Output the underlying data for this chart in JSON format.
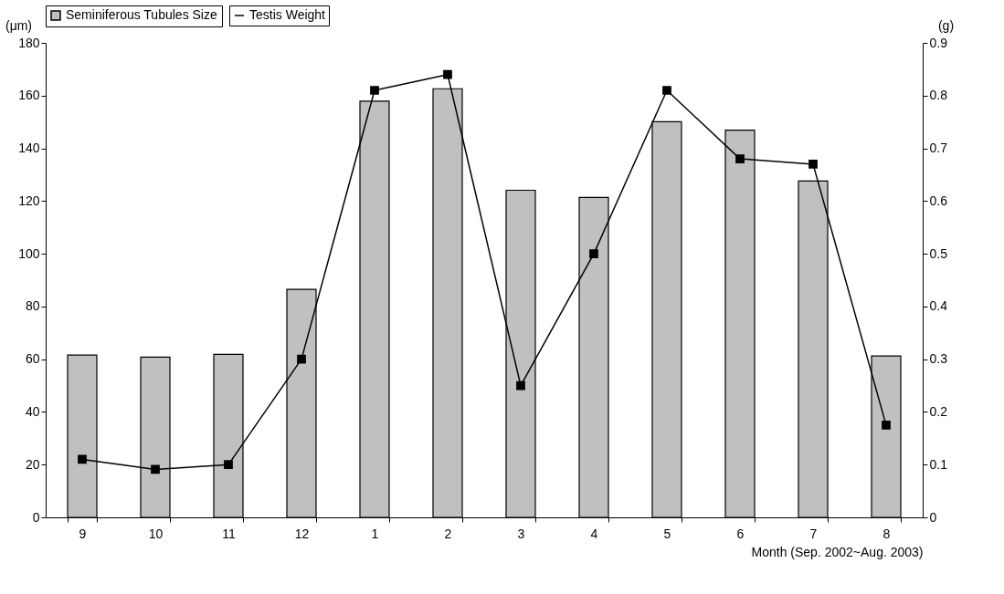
{
  "chart_data": {
    "type": "bar",
    "categories": [
      "9",
      "10",
      "11",
      "12",
      "1",
      "2",
      "3",
      "4",
      "5",
      "6",
      "7",
      "8"
    ],
    "series": [
      {
        "name": "Seminiferous Tubules Size",
        "type": "bar",
        "color": "#c0c0c0",
        "values": [
          61.6,
          60.8,
          61.8,
          86.5,
          157.9,
          162.6,
          124.1,
          121.4,
          150.1,
          146.9,
          127.6,
          61.2
        ]
      },
      {
        "name": "Testis Weight",
        "type": "line",
        "axis": "y2",
        "color": "#000000",
        "values": [
          0.11,
          0.091,
          0.1,
          0.3,
          0.81,
          0.84,
          0.25,
          0.5,
          0.81,
          0.68,
          0.67,
          0.175
        ]
      }
    ],
    "ylabel": "(μm)",
    "y2label": "(g)",
    "xlabel": "Month (Sep. 2002~Aug. 2003)",
    "ylim": [
      0,
      180
    ],
    "yticks": [
      0,
      20,
      40,
      60,
      80,
      100,
      120,
      140,
      160,
      180
    ],
    "y2lim": [
      0,
      0.9
    ],
    "y2ticks": [
      0,
      0.1,
      0.2,
      0.3,
      0.4,
      0.5,
      0.6,
      0.7,
      0.8,
      0.9
    ],
    "legend": "top",
    "marker": "square",
    "line_style": "solid",
    "grid": false
  }
}
